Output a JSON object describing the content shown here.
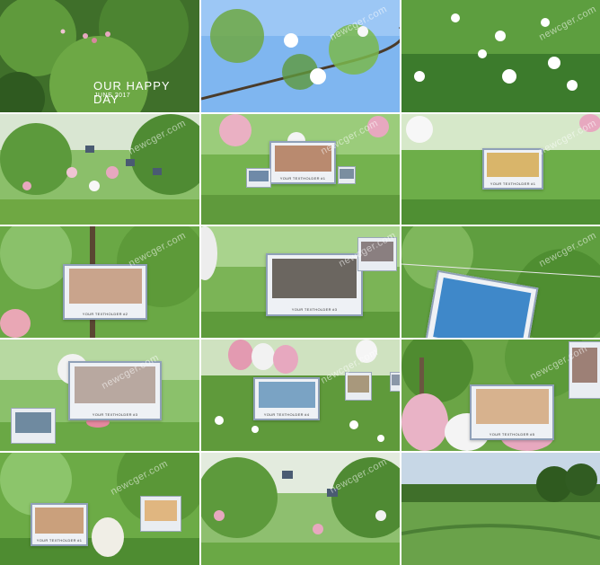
{
  "intro": {
    "title": "OUR HAPPY DAY",
    "date": "JUNE 2017"
  },
  "watermark": "newcger.com",
  "caption": "YOUR TEXTHOLDER #1",
  "captions": {
    "c1": "YOUR TEXTHOLDER #1",
    "c2": "YOUR TEXTHOLDER #1",
    "c3": "YOUR TEXTHOLDER #2",
    "c4": "YOUR TEXTHOLDER #3",
    "c5": "YOUR TEXTHOLDER #3",
    "c6": "YOUR TEXTHOLDER #4",
    "c7": "YOUR TEXTHOLDER #5",
    "c8": "YOUR TEXTHOLDER #1"
  },
  "colors": {
    "green_dark": "#3f7a2a",
    "green_light": "#8cc96a",
    "sky": "#7fb6f0",
    "pink": "#e7a8bf",
    "frame": "#8fa0b8"
  }
}
